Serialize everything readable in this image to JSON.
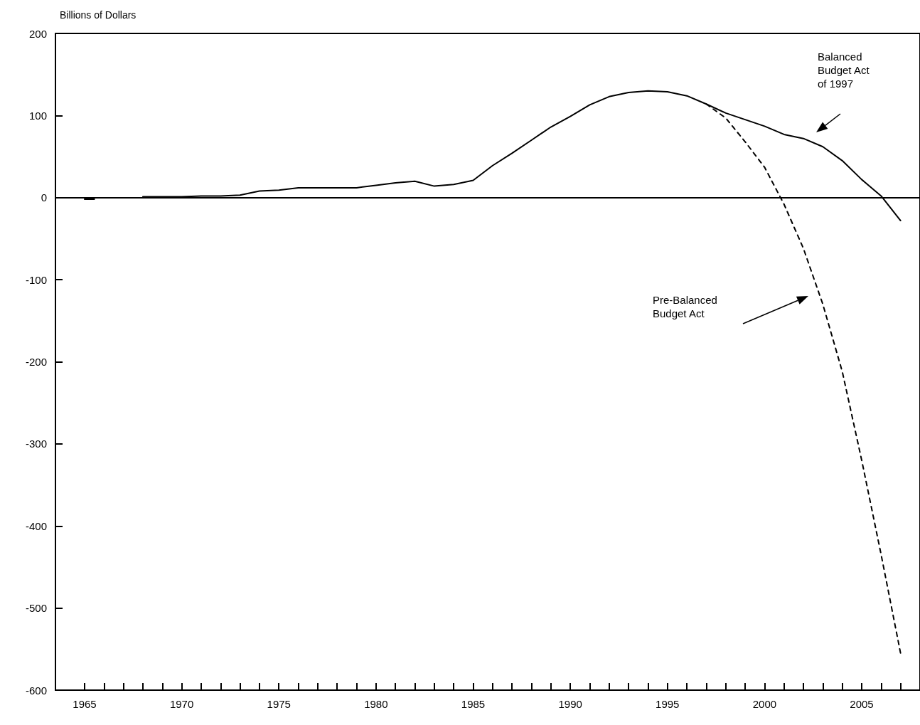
{
  "chart_data": {
    "type": "line",
    "ylabel": "Billions of Dollars",
    "xlim": [
      1963.5,
      2008
    ],
    "ylim": [
      -600,
      200
    ],
    "yticks": [
      -600,
      -500,
      -400,
      -300,
      -200,
      -100,
      0,
      100,
      200
    ],
    "xticks": [
      1965,
      {
        "value": 1966,
        "label": null
      },
      {
        "value": 1967,
        "label": null
      },
      {
        "value": 1968,
        "label": null
      },
      {
        "value": 1969,
        "label": null
      },
      1970,
      {
        "value": 1971,
        "label": null
      },
      {
        "value": 1972,
        "label": null
      },
      {
        "value": 1973,
        "label": null
      },
      {
        "value": 1974,
        "label": null
      },
      1975,
      {
        "value": 1976,
        "label": null
      },
      {
        "value": 1977,
        "label": null
      },
      {
        "value": 1978,
        "label": null
      },
      {
        "value": 1979,
        "label": null
      },
      1980,
      {
        "value": 1981,
        "label": null
      },
      {
        "value": 1982,
        "label": null
      },
      {
        "value": 1983,
        "label": null
      },
      {
        "value": 1984,
        "label": null
      },
      1985,
      {
        "value": 1986,
        "label": null
      },
      {
        "value": 1987,
        "label": null
      },
      {
        "value": 1988,
        "label": null
      },
      {
        "value": 1989,
        "label": null
      },
      1990,
      {
        "value": 1991,
        "label": null
      },
      {
        "value": 1992,
        "label": null
      },
      {
        "value": 1993,
        "label": null
      },
      {
        "value": 1994,
        "label": null
      },
      1995,
      {
        "value": 1996,
        "label": null
      },
      {
        "value": 1997,
        "label": null
      },
      {
        "value": 1998,
        "label": null
      },
      {
        "value": 1999,
        "label": null
      },
      2000,
      {
        "value": 2001,
        "label": null
      },
      {
        "value": 2002,
        "label": null
      },
      {
        "value": 2003,
        "label": null
      },
      {
        "value": 2004,
        "label": null
      },
      2005,
      {
        "value": 2006,
        "label": null
      },
      {
        "value": 2007,
        "label": null
      }
    ],
    "grid": false,
    "marker": "none",
    "series": [
      {
        "color": "#000000",
        "line_style": "solid",
        "x": [
          1965,
          1965.5,
          1966,
          1968,
          1969,
          1970,
          1971,
          1972,
          1973,
          1974,
          1975,
          1976,
          1977,
          1978,
          1979,
          1980,
          1981,
          1982,
          1983,
          1984,
          1985,
          1986,
          1987,
          1988,
          1989,
          1990,
          1991,
          1992,
          1993,
          1994,
          1995,
          1996,
          1997,
          1998,
          1999,
          2000,
          2001,
          2002,
          2003,
          2004,
          2005,
          2006,
          2007
        ],
        "values": [
          -2,
          -2,
          null,
          1,
          1,
          1,
          2,
          2,
          3,
          8,
          9,
          12,
          12,
          12,
          12,
          15,
          18,
          20,
          14,
          16,
          21,
          39,
          54,
          70,
          86,
          99,
          113,
          123,
          128,
          130,
          129,
          124,
          114,
          103,
          95,
          87,
          77,
          72,
          62,
          45,
          22,
          2,
          -28
        ]
      },
      {
        "color": "#000000",
        "line_style": "dashed",
        "x": [
          1997,
          1998,
          1999,
          2000,
          2001,
          2002,
          2003,
          2004,
          2005,
          2006,
          2007
        ],
        "values": [
          114,
          97,
          68,
          37,
          -8,
          -62,
          -130,
          -212,
          -320,
          -435,
          -555
        ]
      }
    ],
    "ref_lines": [
      {
        "axis": "y",
        "value": 0,
        "color": "#000000",
        "line_style": "solid"
      }
    ],
    "annotations": [
      "Balanced Budget Act of 1997",
      "Pre-Balanced Budget Act"
    ]
  }
}
